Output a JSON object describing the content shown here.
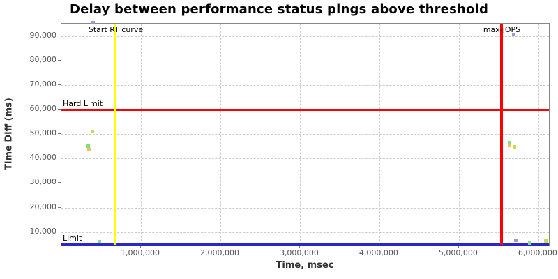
{
  "chart_data": {
    "type": "scatter",
    "title": "Delay between performance status pings above threshold",
    "xlabel": "Time, msec",
    "ylabel": "Time Diff (ms)",
    "xlim": [
      0,
      6150000
    ],
    "ylim": [
      4200,
      95100
    ],
    "grid": true,
    "legend": "none",
    "x_ticks": [
      {
        "v": 1000000,
        "label": "1,000,000"
      },
      {
        "v": 2000000,
        "label": "2,000,000"
      },
      {
        "v": 3000000,
        "label": "3,000,000"
      },
      {
        "v": 4000000,
        "label": "4,000,000"
      },
      {
        "v": 5000000,
        "label": "5,000,000"
      },
      {
        "v": 6000000,
        "label": "6,000,000"
      }
    ],
    "y_ticks": [
      {
        "v": 10000,
        "label": "10,000"
      },
      {
        "v": 20000,
        "label": "20,000"
      },
      {
        "v": 30000,
        "label": "30,000"
      },
      {
        "v": 40000,
        "label": "40,000"
      },
      {
        "v": 50000,
        "label": "50,000"
      },
      {
        "v": 60000,
        "label": "60,000"
      },
      {
        "v": 70000,
        "label": "70,000"
      },
      {
        "v": 80000,
        "label": "80,000"
      },
      {
        "v": 90000,
        "label": "90,000"
      }
    ],
    "series": [
      {
        "name": "series-blue",
        "color": "#9999DD",
        "points": [
          [
            400000,
            95500
          ],
          [
            5690000,
            90700
          ],
          [
            5720000,
            6700
          ]
        ]
      },
      {
        "name": "series-yellow-green",
        "color": "#CDDC4A",
        "points": [
          [
            390000,
            51200
          ],
          [
            5700000,
            44900
          ],
          [
            6090000,
            6200
          ]
        ]
      },
      {
        "name": "series-green",
        "color": "#84DF84",
        "points": [
          [
            340000,
            45100
          ],
          [
            480000,
            6100
          ],
          [
            5640000,
            46400
          ],
          [
            5890000,
            5600
          ]
        ]
      },
      {
        "name": "series-orange",
        "color": "#FFBE55",
        "points": [
          [
            350000,
            43700
          ],
          [
            5640000,
            45400
          ]
        ]
      }
    ],
    "annotations": {
      "vlines": [
        {
          "label": "Start RT curve",
          "x": 684000,
          "color": "#FFFF00",
          "stroke": 3
        },
        {
          "label": "max-jOPS",
          "x": 5540000,
          "color": "#FF0000",
          "stroke": 4
        }
      ],
      "hlines": [
        {
          "label": "Hard Limit",
          "y": 60000,
          "color": "#FF0000",
          "stroke": 3
        },
        {
          "label": "Limit",
          "y": 5000,
          "color": "#2929C8",
          "stroke": 3
        }
      ]
    }
  }
}
